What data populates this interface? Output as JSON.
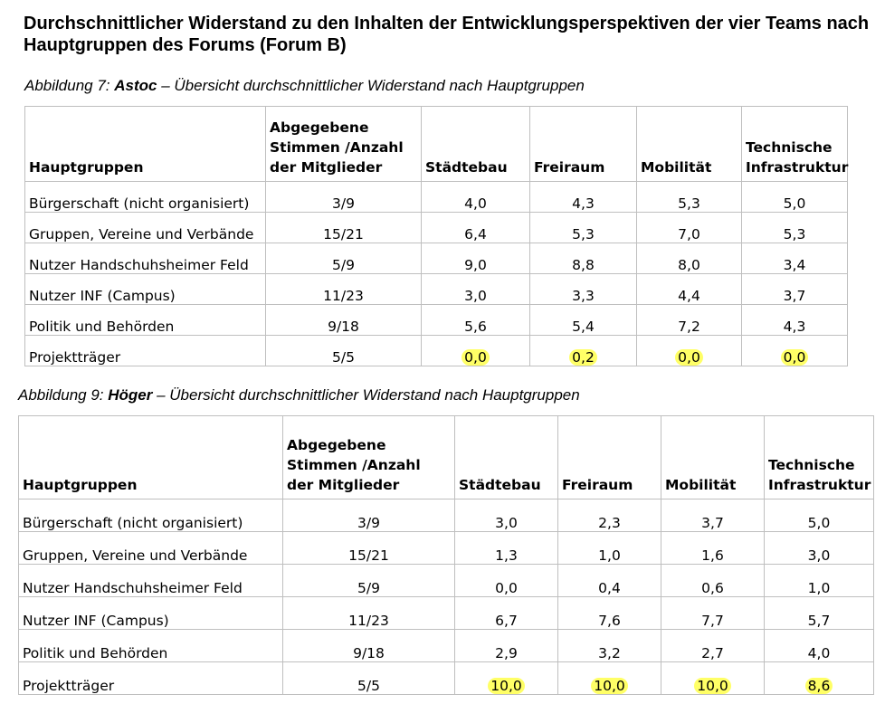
{
  "title": "Durchschnittlicher Widerstand zu den Inhalten der Entwicklungsperspektiven der vier Teams nach Hauptgruppen des Forums (Forum B)",
  "headers": {
    "gruppe": "Hauptgruppen",
    "stimmen": "Abgegebene Stimmen /Anzahl der Mitglieder",
    "staedtebau": "Städtebau",
    "freiraum": "Freiraum",
    "mobilitaet": "Mobilität",
    "infra": "Technische Infrastruktur"
  },
  "highlight_color": "#ffff66",
  "tables": [
    {
      "caption_pre": "Abbildung 7: ",
      "caption_team": "Astoc",
      "caption_post": " – Übersicht durchschnittlicher Widerstand nach Hauptgruppen",
      "rows": [
        {
          "gruppe": "Bürgerschaft (nicht organisiert)",
          "stimmen": "3/9",
          "staedtebau": "4,0",
          "freiraum": "4,3",
          "mobilitaet": "5,3",
          "infra": "5,0"
        },
        {
          "gruppe": "Gruppen, Vereine und Verbände",
          "stimmen": "15/21",
          "staedtebau": "6,4",
          "freiraum": "5,3",
          "mobilitaet": "7,0",
          "infra": "5,3"
        },
        {
          "gruppe": "Nutzer Handschuhsheimer Feld",
          "stimmen": "5/9",
          "staedtebau": "9,0",
          "freiraum": "8,8",
          "mobilitaet": "8,0",
          "infra": "3,4"
        },
        {
          "gruppe": "Nutzer INF (Campus)",
          "stimmen": "11/23",
          "staedtebau": "3,0",
          "freiraum": "3,3",
          "mobilitaet": "4,4",
          "infra": "3,7"
        },
        {
          "gruppe": "Politik und Behörden",
          "stimmen": "9/18",
          "staedtebau": "5,6",
          "freiraum": "5,4",
          "mobilitaet": "7,2",
          "infra": "4,3"
        },
        {
          "gruppe": "Projektträger",
          "stimmen": "5/5",
          "staedtebau": "0,0",
          "freiraum": "0,2",
          "mobilitaet": "0,0",
          "infra": "0,0"
        }
      ]
    },
    {
      "caption_pre": "Abbildung 9: ",
      "caption_team": "Höger",
      "caption_post": " – Übersicht durchschnittlicher Widerstand nach Hauptgruppen",
      "rows": [
        {
          "gruppe": "Bürgerschaft (nicht organisiert)",
          "stimmen": "3/9",
          "staedtebau": "3,0",
          "freiraum": "2,3",
          "mobilitaet": "3,7",
          "infra": "5,0"
        },
        {
          "gruppe": "Gruppen, Vereine und Verbände",
          "stimmen": "15/21",
          "staedtebau": "1,3",
          "freiraum": "1,0",
          "mobilitaet": "1,6",
          "infra": "3,0"
        },
        {
          "gruppe": "Nutzer Handschuhsheimer Feld",
          "stimmen": "5/9",
          "staedtebau": "0,0",
          "freiraum": "0,4",
          "mobilitaet": "0,6",
          "infra": "1,0"
        },
        {
          "gruppe": "Nutzer INF (Campus)",
          "stimmen": "11/23",
          "staedtebau": "6,7",
          "freiraum": "7,6",
          "mobilitaet": "7,7",
          "infra": "5,7"
        },
        {
          "gruppe": "Politik und Behörden",
          "stimmen": "9/18",
          "staedtebau": "2,9",
          "freiraum": "3,2",
          "mobilitaet": "2,7",
          "infra": "4,0"
        },
        {
          "gruppe": "Projektträger",
          "stimmen": "5/5",
          "staedtebau": "10,0",
          "freiraum": "10,0",
          "mobilitaet": "10,0",
          "infra": "8,6"
        }
      ]
    }
  ]
}
